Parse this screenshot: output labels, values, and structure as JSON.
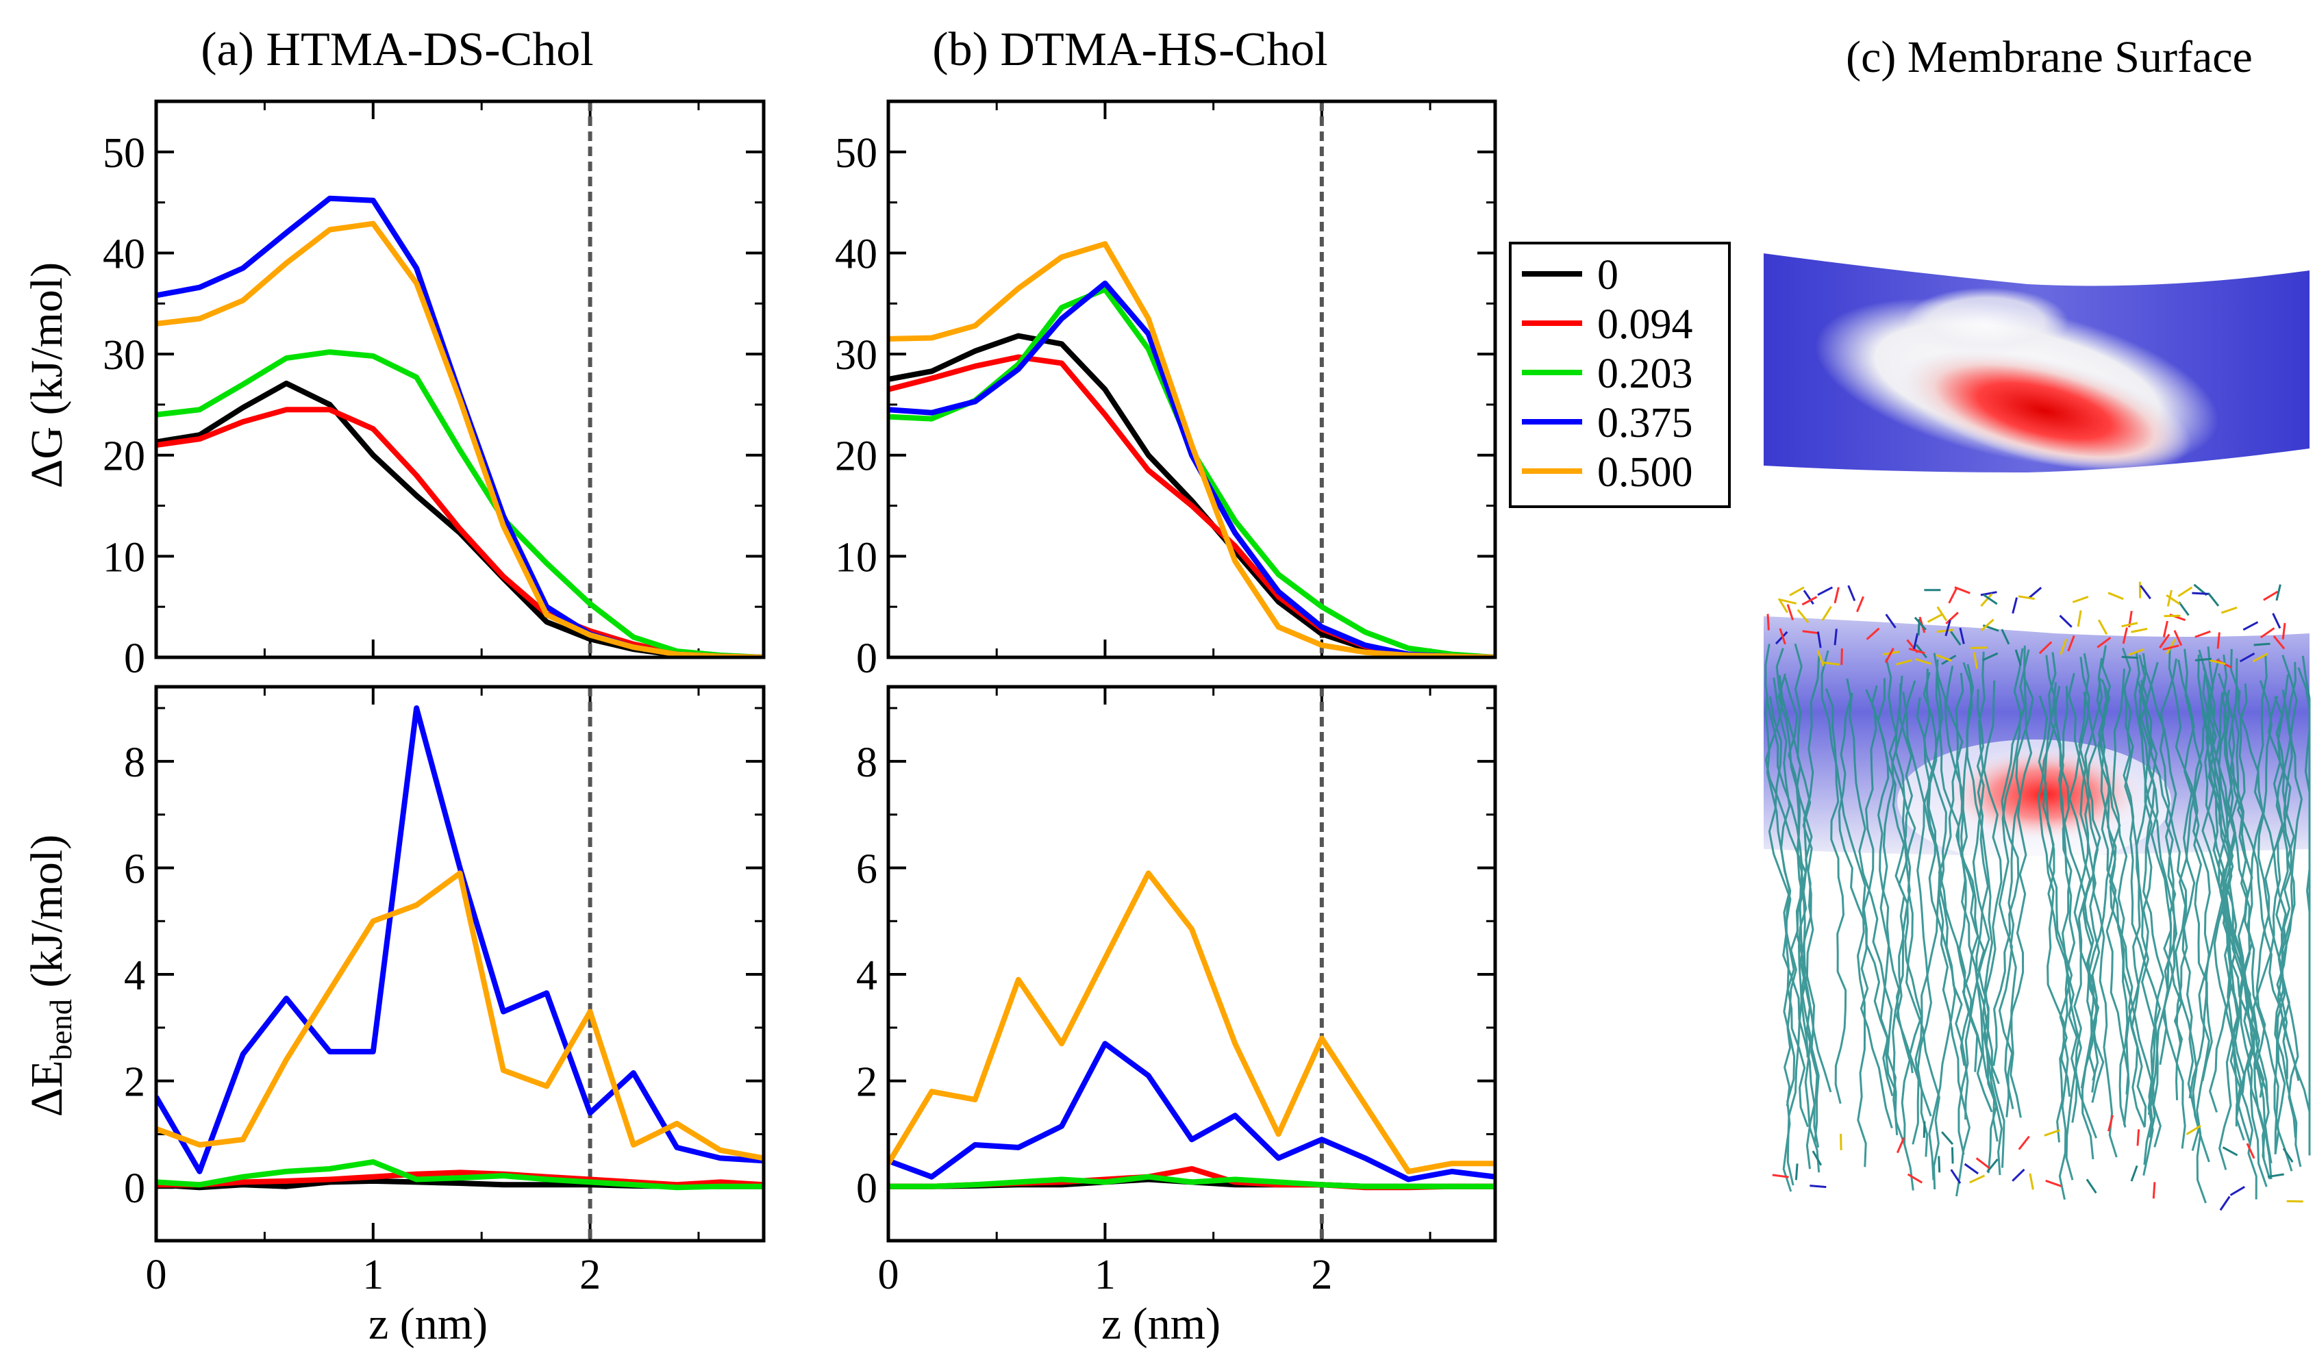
{
  "figure": {
    "panel_a_title": "(a) HTMA-DS-Chol",
    "panel_b_title": "(b) DTMA-HS-Chol",
    "panel_c_title": "(c) Membrane Surface",
    "top_ylabel": "ΔG (kJ/mol)",
    "bottom_ylabel_main": "ΔE",
    "bottom_ylabel_sub": "bend",
    "bottom_ylabel_unit": " (kJ/mol)",
    "xlabel": "z (nm)"
  },
  "legend": {
    "entries": [
      "0",
      "0.094",
      "0.203",
      "0.375",
      "0.500"
    ],
    "colors": [
      "#000000",
      "#ff0000",
      "#00e000",
      "#0000ff",
      "#ffa500"
    ]
  },
  "chart_data": [
    {
      "type": "line",
      "id": "a-dG",
      "title": "(a) HTMA-DS-Chol",
      "xlabel": "",
      "ylabel": "ΔG (kJ/mol)",
      "xlim": [
        0,
        2.8
      ],
      "ylim": [
        0,
        55
      ],
      "xticks": [
        0,
        1,
        2
      ],
      "yticks": [
        0,
        10,
        20,
        30,
        40,
        50
      ],
      "ref_line_x": 2,
      "x": [
        0,
        0.2,
        0.4,
        0.6,
        0.8,
        1.0,
        1.2,
        1.4,
        1.6,
        1.8,
        2.0,
        2.2,
        2.4,
        2.6,
        2.8
      ],
      "series": [
        {
          "name": "0",
          "values": [
            21.3,
            22.0,
            24.7,
            27.1,
            25.0,
            20.0,
            16.0,
            12.3,
            7.8,
            3.5,
            1.8,
            0.8,
            0.2,
            0.1,
            0.0
          ]
        },
        {
          "name": "0.094",
          "values": [
            21.0,
            21.6,
            23.3,
            24.5,
            24.5,
            22.6,
            18.0,
            12.7,
            8.0,
            4.3,
            2.6,
            1.3,
            0.4,
            0.1,
            0.0
          ]
        },
        {
          "name": "0.203",
          "values": [
            24.0,
            24.5,
            27.0,
            29.6,
            30.2,
            29.8,
            27.7,
            20.5,
            13.7,
            9.3,
            5.3,
            2.0,
            0.6,
            0.2,
            0.0
          ]
        },
        {
          "name": "0.375",
          "values": [
            35.8,
            36.6,
            38.5,
            42.0,
            45.4,
            45.2,
            38.5,
            26.0,
            14.0,
            5.0,
            2.3,
            1.0,
            0.3,
            0.1,
            0.0
          ]
        },
        {
          "name": "0.500",
          "values": [
            33.0,
            33.5,
            35.3,
            39.0,
            42.3,
            42.9,
            37.0,
            25.5,
            13.0,
            4.2,
            2.2,
            1.0,
            0.3,
            0.1,
            0.0
          ]
        }
      ]
    },
    {
      "type": "line",
      "id": "b-dG",
      "title": "(b) DTMA-HS-Chol",
      "xlabel": "",
      "ylabel": "",
      "xlim": [
        0,
        2.8
      ],
      "ylim": [
        0,
        55
      ],
      "xticks": [
        0,
        1,
        2
      ],
      "yticks": [
        0,
        10,
        20,
        30,
        40,
        50
      ],
      "ref_line_x": 2,
      "x": [
        0,
        0.2,
        0.4,
        0.6,
        0.8,
        1.0,
        1.2,
        1.4,
        1.6,
        1.8,
        2.0,
        2.2,
        2.4,
        2.6,
        2.8
      ],
      "series": [
        {
          "name": "0",
          "values": [
            27.5,
            28.3,
            30.3,
            31.8,
            31.0,
            26.5,
            20.0,
            15.5,
            10.5,
            5.5,
            2.3,
            0.9,
            0.3,
            0.1,
            0.0
          ]
        },
        {
          "name": "0.094",
          "values": [
            26.5,
            27.6,
            28.8,
            29.7,
            29.1,
            24.0,
            18.5,
            15.0,
            11.0,
            6.0,
            2.8,
            1.1,
            0.3,
            0.1,
            0.0
          ]
        },
        {
          "name": "0.203",
          "values": [
            23.8,
            23.6,
            25.4,
            29.0,
            34.6,
            36.4,
            30.5,
            20.5,
            13.5,
            8.2,
            5.0,
            2.5,
            0.9,
            0.3,
            0.0
          ]
        },
        {
          "name": "0.375",
          "values": [
            24.5,
            24.2,
            25.3,
            28.5,
            33.5,
            37.0,
            32.0,
            20.0,
            12.3,
            6.5,
            3.0,
            1.2,
            0.3,
            0.1,
            0.0
          ]
        },
        {
          "name": "0.500",
          "values": [
            31.5,
            31.6,
            32.8,
            36.5,
            39.6,
            40.9,
            33.5,
            21.0,
            9.5,
            3.0,
            1.2,
            0.5,
            0.2,
            0.1,
            0.0
          ]
        }
      ]
    },
    {
      "type": "line",
      "id": "a-Ebend",
      "title": "",
      "xlabel": "z (nm)",
      "ylabel": "ΔE_bend (kJ/mol)",
      "xlim": [
        0,
        2.8
      ],
      "ylim": [
        -1,
        9.4
      ],
      "xticks": [
        0,
        1,
        2
      ],
      "yticks": [
        0,
        2,
        4,
        6,
        8
      ],
      "ref_line_x": 2,
      "x": [
        0,
        0.2,
        0.4,
        0.6,
        0.8,
        1.0,
        1.2,
        1.4,
        1.6,
        1.8,
        2.0,
        2.2,
        2.4,
        2.6,
        2.8
      ],
      "series": [
        {
          "name": "0",
          "values": [
            0.05,
            0.0,
            0.05,
            0.02,
            0.1,
            0.12,
            0.1,
            0.08,
            0.05,
            0.05,
            0.05,
            0.03,
            0.02,
            0.02,
            0.02
          ]
        },
        {
          "name": "0.094",
          "values": [
            0.05,
            0.05,
            0.1,
            0.12,
            0.15,
            0.2,
            0.25,
            0.28,
            0.25,
            0.2,
            0.15,
            0.1,
            0.05,
            0.1,
            0.05
          ]
        },
        {
          "name": "0.203",
          "values": [
            0.1,
            0.05,
            0.2,
            0.3,
            0.35,
            0.48,
            0.15,
            0.18,
            0.22,
            0.15,
            0.1,
            0.05,
            0.0,
            0.02,
            0.02
          ]
        },
        {
          "name": "0.375",
          "values": [
            1.7,
            0.3,
            2.5,
            3.55,
            2.55,
            2.55,
            9.0,
            6.0,
            3.3,
            3.65,
            1.4,
            2.15,
            0.75,
            0.55,
            0.5
          ]
        },
        {
          "name": "0.500",
          "values": [
            1.1,
            0.8,
            0.9,
            2.4,
            3.7,
            5.0,
            5.3,
            5.9,
            2.2,
            1.9,
            3.3,
            0.8,
            1.2,
            0.7,
            0.55
          ]
        }
      ]
    },
    {
      "type": "line",
      "id": "b-Ebend",
      "title": "",
      "xlabel": "z (nm)",
      "ylabel": "",
      "xlim": [
        0,
        2.8
      ],
      "ylim": [
        -1,
        9.4
      ],
      "xticks": [
        0,
        1,
        2
      ],
      "yticks": [
        0,
        2,
        4,
        6,
        8
      ],
      "ref_line_x": 2,
      "x": [
        0,
        0.2,
        0.4,
        0.6,
        0.8,
        1.0,
        1.2,
        1.4,
        1.6,
        1.8,
        2.0,
        2.2,
        2.4,
        2.6,
        2.8
      ],
      "series": [
        {
          "name": "0",
          "values": [
            0.02,
            0.02,
            0.03,
            0.05,
            0.05,
            0.1,
            0.15,
            0.1,
            0.05,
            0.05,
            0.05,
            0.02,
            0.02,
            0.02,
            0.02
          ]
        },
        {
          "name": "0.094",
          "values": [
            0.02,
            0.02,
            0.05,
            0.08,
            0.1,
            0.15,
            0.2,
            0.35,
            0.1,
            0.05,
            0.05,
            0.0,
            0.0,
            0.02,
            0.02
          ]
        },
        {
          "name": "0.203",
          "values": [
            0.02,
            0.02,
            0.05,
            0.1,
            0.15,
            0.1,
            0.2,
            0.1,
            0.15,
            0.1,
            0.05,
            0.02,
            0.02,
            0.02,
            0.02
          ]
        },
        {
          "name": "0.375",
          "values": [
            0.5,
            0.2,
            0.8,
            0.75,
            1.15,
            2.7,
            2.1,
            0.9,
            1.35,
            0.55,
            0.9,
            0.55,
            0.15,
            0.3,
            0.2
          ]
        },
        {
          "name": "0.500",
          "values": [
            0.45,
            1.8,
            1.65,
            3.9,
            2.7,
            4.3,
            5.9,
            4.85,
            2.7,
            1.0,
            2.8,
            1.55,
            0.3,
            0.45,
            0.45
          ]
        }
      ]
    }
  ]
}
